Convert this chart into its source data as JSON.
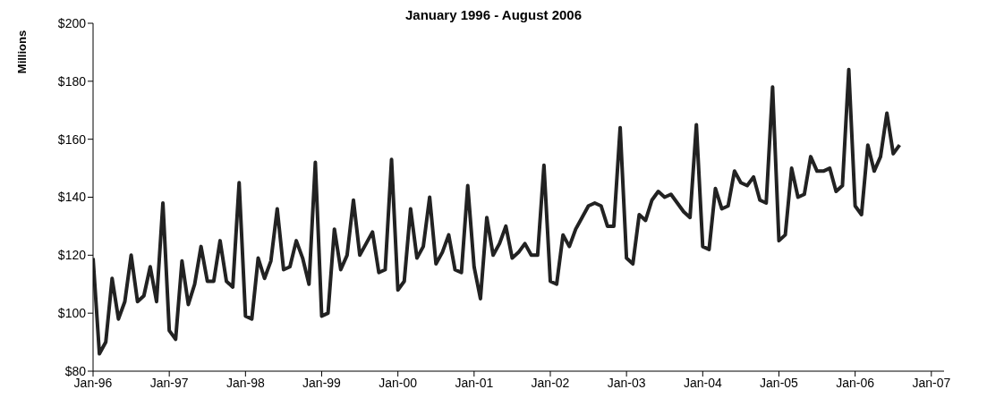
{
  "chart_data": {
    "type": "line",
    "title": "January 1996 - August 2006",
    "ylabel": "Millions",
    "x": [
      "1996-01",
      "1996-02",
      "1996-03",
      "1996-04",
      "1996-05",
      "1996-06",
      "1996-07",
      "1996-08",
      "1996-09",
      "1996-10",
      "1996-11",
      "1996-12",
      "1997-01",
      "1997-02",
      "1997-03",
      "1997-04",
      "1997-05",
      "1997-06",
      "1997-07",
      "1997-08",
      "1997-09",
      "1997-10",
      "1997-11",
      "1997-12",
      "1998-01",
      "1998-02",
      "1998-03",
      "1998-04",
      "1998-05",
      "1998-06",
      "1998-07",
      "1998-08",
      "1998-09",
      "1998-10",
      "1998-11",
      "1998-12",
      "1999-01",
      "1999-02",
      "1999-03",
      "1999-04",
      "1999-05",
      "1999-06",
      "1999-07",
      "1999-08",
      "1999-09",
      "1999-10",
      "1999-11",
      "1999-12",
      "2000-01",
      "2000-02",
      "2000-03",
      "2000-04",
      "2000-05",
      "2000-06",
      "2000-07",
      "2000-08",
      "2000-09",
      "2000-10",
      "2000-11",
      "2000-12",
      "2001-01",
      "2001-02",
      "2001-03",
      "2001-04",
      "2001-05",
      "2001-06",
      "2001-07",
      "2001-08",
      "2001-09",
      "2001-10",
      "2001-11",
      "2001-12",
      "2002-01",
      "2002-02",
      "2002-03",
      "2002-04",
      "2002-05",
      "2002-06",
      "2002-07",
      "2002-08",
      "2002-09",
      "2002-10",
      "2002-11",
      "2002-12",
      "2003-01",
      "2003-02",
      "2003-03",
      "2003-04",
      "2003-05",
      "2003-06",
      "2003-07",
      "2003-08",
      "2003-09",
      "2003-10",
      "2003-11",
      "2003-12",
      "2004-01",
      "2004-02",
      "2004-03",
      "2004-04",
      "2004-05",
      "2004-06",
      "2004-07",
      "2004-08",
      "2004-09",
      "2004-10",
      "2004-11",
      "2004-12",
      "2005-01",
      "2005-02",
      "2005-03",
      "2005-04",
      "2005-05",
      "2005-06",
      "2005-07",
      "2005-08",
      "2005-09",
      "2005-10",
      "2005-11",
      "2005-12",
      "2006-01",
      "2006-02",
      "2006-03",
      "2006-04",
      "2006-05",
      "2006-06",
      "2006-07",
      "2006-08"
    ],
    "series": [
      {
        "color": "#222222",
        "values": [
          119,
          86,
          90,
          112,
          98,
          104,
          120,
          104,
          106,
          116,
          104,
          138,
          94,
          91,
          118,
          103,
          110,
          123,
          111,
          111,
          125,
          111,
          109,
          145,
          99,
          98,
          119,
          112,
          118,
          136,
          115,
          116,
          125,
          119,
          110,
          152,
          99,
          100,
          129,
          115,
          120,
          139,
          120,
          124,
          128,
          114,
          115,
          153,
          108,
          111,
          136,
          119,
          123,
          140,
          117,
          121,
          127,
          115,
          114,
          144,
          116,
          105,
          133,
          120,
          124,
          130,
          119,
          121,
          124,
          120,
          120,
          151,
          111,
          110,
          127,
          123,
          129,
          133,
          137,
          138,
          137,
          130,
          130,
          164,
          119,
          117,
          134,
          132,
          139,
          142,
          140,
          141,
          138,
          135,
          133,
          165,
          123,
          122,
          143,
          136,
          137,
          149,
          145,
          144,
          147,
          139,
          138,
          178,
          125,
          127,
          150,
          140,
          141,
          154,
          149,
          149,
          150,
          142,
          144,
          184,
          137,
          134,
          158,
          149,
          154,
          169,
          155,
          158
        ]
      }
    ],
    "xlim": [
      "1996-01",
      "2007-03"
    ],
    "xticks": [
      {
        "value": "1996-01",
        "label": "Jan-96"
      },
      {
        "value": "1997-01",
        "label": "Jan-97"
      },
      {
        "value": "1998-01",
        "label": "Jan-98"
      },
      {
        "value": "1999-01",
        "label": "Jan-99"
      },
      {
        "value": "2000-01",
        "label": "Jan-00"
      },
      {
        "value": "2001-01",
        "label": "Jan-01"
      },
      {
        "value": "2002-01",
        "label": "Jan-02"
      },
      {
        "value": "2003-01",
        "label": "Jan-03"
      },
      {
        "value": "2004-01",
        "label": "Jan-04"
      },
      {
        "value": "2005-01",
        "label": "Jan-05"
      },
      {
        "value": "2006-01",
        "label": "Jan-06"
      },
      {
        "value": "2007-01",
        "label": "Jan-07"
      }
    ],
    "ylim": [
      80,
      200
    ],
    "yticks": [
      {
        "value": 80,
        "label": "$80"
      },
      {
        "value": 100,
        "label": "$100"
      },
      {
        "value": 120,
        "label": "$120"
      },
      {
        "value": 140,
        "label": "$140"
      },
      {
        "value": 160,
        "label": "$160"
      },
      {
        "value": 180,
        "label": "$180"
      },
      {
        "value": 200,
        "label": "$200"
      }
    ],
    "grid": false,
    "legend": false,
    "marker": "none",
    "line_style": "solid"
  }
}
